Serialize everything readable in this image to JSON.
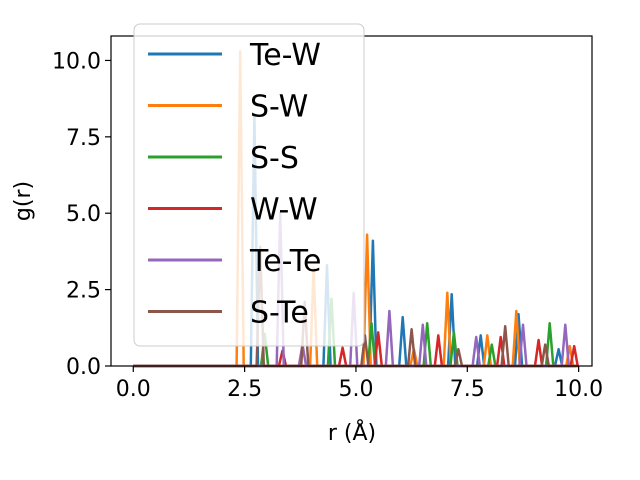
{
  "chart_data": {
    "type": "line",
    "xlabel": "r (Å)",
    "ylabel": "g(r)",
    "xlim": [
      -0.5,
      10.3
    ],
    "ylim": [
      0,
      10.8
    ],
    "xticks": [
      "0.0",
      "2.5",
      "5.0",
      "7.5",
      "10.0"
    ],
    "yticks": [
      "0.0",
      "2.5",
      "5.0",
      "7.5",
      "10.0"
    ],
    "grid": false,
    "legend_position": "upper-left",
    "series": [
      {
        "name": "Te-W",
        "color": "#1f77b4",
        "peaks": [
          [
            2.72,
            8.2
          ],
          [
            4.35,
            3.3
          ],
          [
            5.38,
            4.1
          ],
          [
            6.05,
            1.6
          ],
          [
            7.15,
            2.35
          ],
          [
            7.8,
            1.0
          ],
          [
            8.65,
            1.7
          ],
          [
            9.55,
            0.55
          ]
        ]
      },
      {
        "name": "S-W",
        "color": "#ff7f0e",
        "peaks": [
          [
            2.4,
            10.3
          ],
          [
            4.05,
            3.2
          ],
          [
            5.25,
            4.3
          ],
          [
            6.3,
            0.55
          ],
          [
            7.05,
            2.4
          ],
          [
            7.95,
            1.0
          ],
          [
            8.6,
            1.8
          ],
          [
            9.8,
            0.65
          ]
        ]
      },
      {
        "name": "S-S",
        "color": "#2ca02c",
        "peaks": [
          [
            2.95,
            1.05
          ],
          [
            4.45,
            2.2
          ],
          [
            5.35,
            1.4
          ],
          [
            6.6,
            1.4
          ],
          [
            7.2,
            1.1
          ],
          [
            8.05,
            0.7
          ],
          [
            9.35,
            1.4
          ]
        ]
      },
      {
        "name": "W-W",
        "color": "#d62728",
        "peaks": [
          [
            3.35,
            0.5
          ],
          [
            4.7,
            0.6
          ],
          [
            5.5,
            1.1
          ],
          [
            6.85,
            1.0
          ],
          [
            8.25,
            0.95
          ],
          [
            9.1,
            0.85
          ],
          [
            9.9,
            0.65
          ]
        ]
      },
      {
        "name": "Te-Te",
        "color": "#9467bd",
        "peaks": [
          [
            3.3,
            5.0
          ],
          [
            3.8,
            0.7
          ],
          [
            4.95,
            2.4
          ],
          [
            5.75,
            1.8
          ],
          [
            6.5,
            1.35
          ],
          [
            7.7,
            0.95
          ],
          [
            8.75,
            1.35
          ],
          [
            9.7,
            1.35
          ]
        ]
      },
      {
        "name": "S-Te",
        "color": "#8c564b",
        "peaks": [
          [
            2.85,
            3.9
          ],
          [
            3.85,
            2.1
          ],
          [
            5.2,
            1.0
          ],
          [
            6.25,
            1.2
          ],
          [
            7.3,
            0.55
          ],
          [
            8.35,
            1.3
          ],
          [
            9.25,
            0.7
          ]
        ]
      }
    ]
  }
}
